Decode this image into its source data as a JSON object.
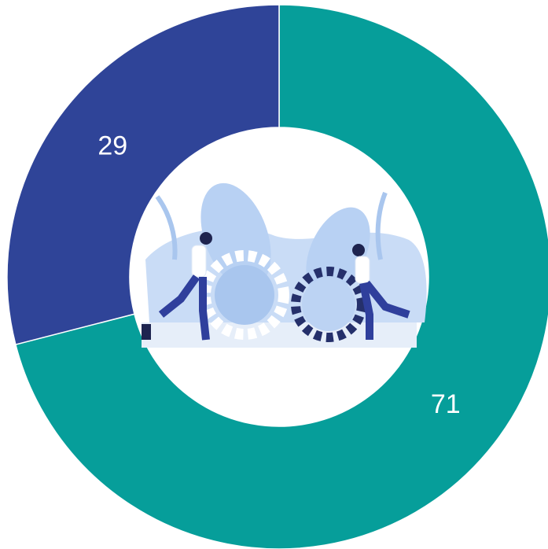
{
  "chart_data": {
    "type": "donut",
    "values": [
      71,
      29
    ],
    "colors": [
      "#069e9a",
      "#2f4498"
    ]
  }
}
